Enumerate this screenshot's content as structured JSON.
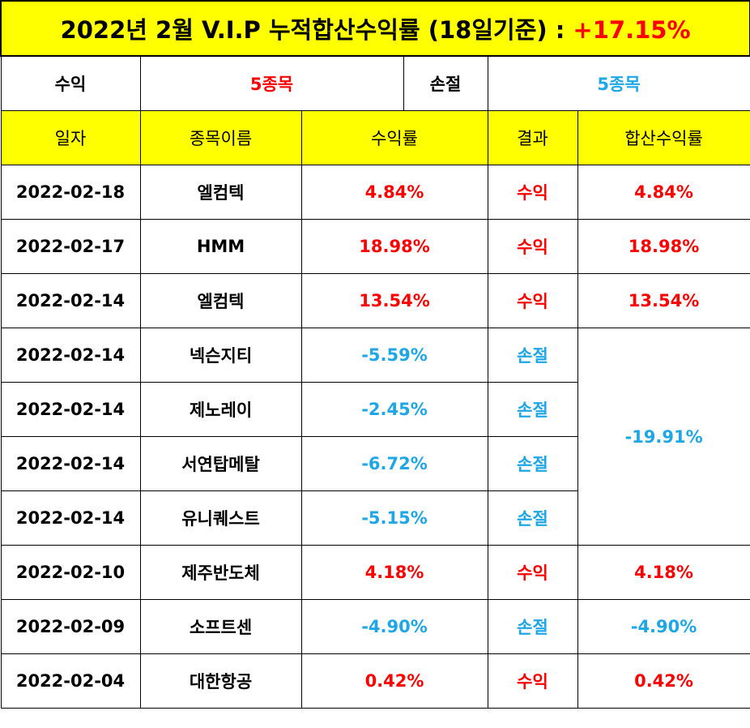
{
  "title": {
    "text": "2022년 2월 V.I.P 누적합산수익률 (18일기준) : ",
    "total": "+17.15%"
  },
  "summary": {
    "profit_label": "수익",
    "profit_count": "5종목",
    "loss_label": "손절",
    "loss_count": "5종목"
  },
  "columns": [
    "일자",
    "종목이름",
    "수익률",
    "결과",
    "합산수익률"
  ],
  "rows": [
    {
      "date": "2022-02-18",
      "name": "엘컴텍",
      "rate": "4.84%",
      "result": "수익",
      "sum": "4.84%"
    },
    {
      "date": "2022-02-17",
      "name": "HMM",
      "rate": "18.98%",
      "result": "수익",
      "sum": "18.98%"
    },
    {
      "date": "2022-02-14",
      "name": "엘컴텍",
      "rate": "13.54%",
      "result": "수익",
      "sum": "13.54%"
    },
    {
      "date": "2022-02-14",
      "name": "넥슨지티",
      "rate": "-5.59%",
      "result": "손절"
    },
    {
      "date": "2022-02-14",
      "name": "제노레이",
      "rate": "-2.45%",
      "result": "손절"
    },
    {
      "date": "2022-02-14",
      "name": "서연탑메탈",
      "rate": "-6.72%",
      "result": "손절"
    },
    {
      "date": "2022-02-14",
      "name": "유니퀘스트",
      "rate": "-5.15%",
      "result": "손절"
    },
    {
      "date": "2022-02-10",
      "name": "제주반도체",
      "rate": "4.18%",
      "result": "수익",
      "sum": "4.18%"
    },
    {
      "date": "2022-02-09",
      "name": "소프트센",
      "rate": "-4.90%",
      "result": "손절",
      "sum": "-4.90%"
    },
    {
      "date": "2022-02-04",
      "name": "대한항공",
      "rate": "0.42%",
      "result": "수익",
      "sum": "0.42%"
    }
  ],
  "merged_sum": "-19.91%",
  "colors": {
    "header_bg": "#ffff00",
    "profit": "#ff0000",
    "loss": "#1ea6e6"
  }
}
